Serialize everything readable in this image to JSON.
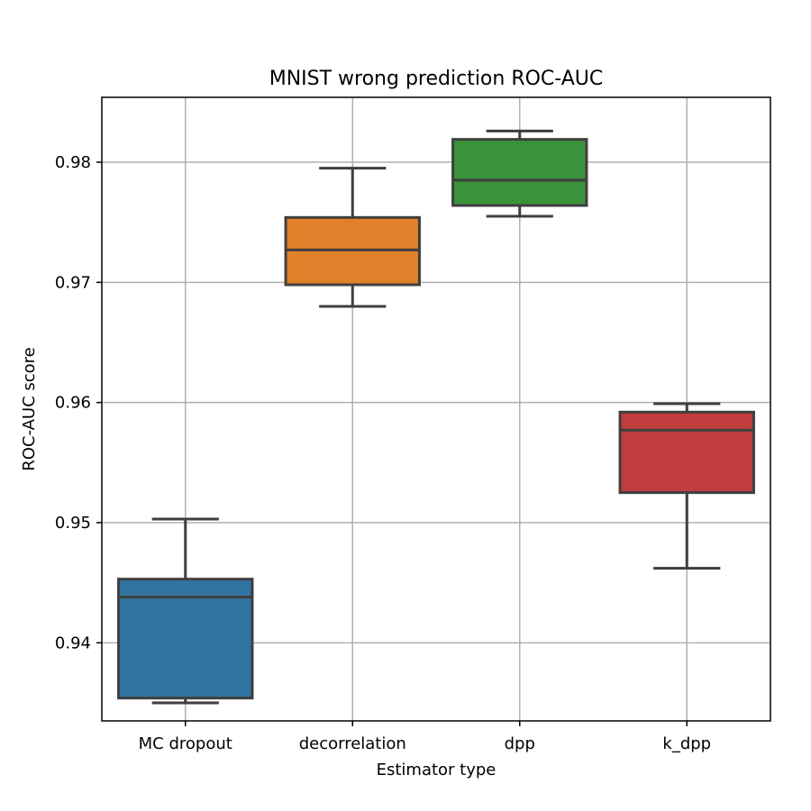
{
  "chart_data": {
    "type": "box",
    "title": "MNIST wrong prediction ROC-AUC",
    "xlabel": "Estimator type",
    "ylabel": "ROC-AUC score",
    "ylim": [
      0.9335,
      0.9854
    ],
    "yticks": [
      0.94,
      0.95,
      0.96,
      0.97,
      0.98
    ],
    "ytick_labels": [
      "0.94",
      "0.95",
      "0.96",
      "0.97",
      "0.98"
    ],
    "grid": true,
    "categories": [
      "MC dropout",
      "decorrelation",
      "dpp",
      "k_dpp"
    ],
    "series": [
      {
        "name": "MC dropout",
        "color": "#3274a1",
        "whislo": 0.935,
        "q1": 0.9354,
        "median": 0.9438,
        "q3": 0.9453,
        "whishi": 0.9503
      },
      {
        "name": "decorrelation",
        "color": "#e1812c",
        "whislo": 0.968,
        "q1": 0.9698,
        "median": 0.9727,
        "q3": 0.9754,
        "whishi": 0.9795
      },
      {
        "name": "dpp",
        "color": "#3a923a",
        "whislo": 0.9755,
        "q1": 0.9764,
        "median": 0.9785,
        "q3": 0.9819,
        "whishi": 0.9826
      },
      {
        "name": "k_dpp",
        "color": "#c03d3e",
        "whislo": 0.9462,
        "q1": 0.9525,
        "median": 0.9577,
        "q3": 0.9592,
        "whishi": 0.9599
      }
    ]
  }
}
